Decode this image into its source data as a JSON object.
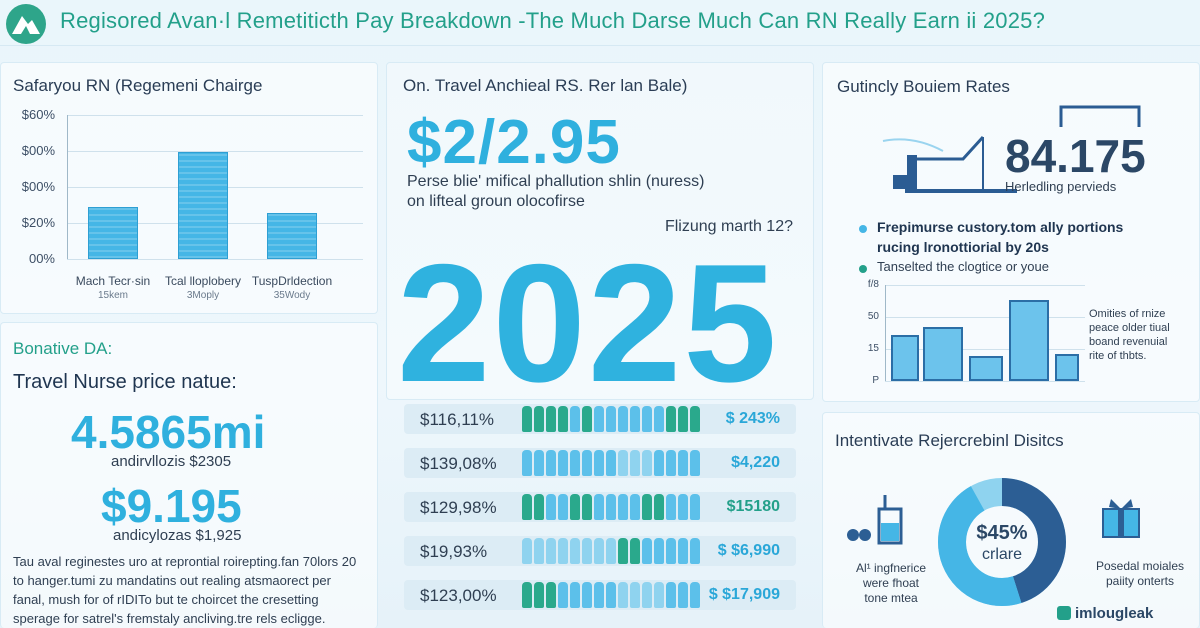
{
  "header": {
    "title": "Regisored Avan·l Remetiticth Pay Breakdown -The Much Darse Much Can RN Really Earn ii 2025?"
  },
  "left_top": {
    "title": "Safaryou RN (Regemeni Chairge",
    "chart_data": {
      "type": "bar",
      "y_ticks": [
        "$60%",
        "$00%",
        "$00%",
        "$20%",
        "00%"
      ],
      "categories": [
        "Mach Tecr·sin",
        "Tcal lloplobery",
        "TuspDrldection"
      ],
      "subcategories": [
        "15kem",
        "3Moply",
        "35Wody"
      ],
      "values": [
        0.36,
        0.74,
        0.32
      ]
    }
  },
  "left_bottom": {
    "kicker": "Bonative DA:",
    "title": "Travel Nurse price natue:",
    "stat1": "4.5865mi",
    "stat1_sub": "andirvllozis $2305",
    "stat2": "$9.195",
    "stat2_sub": "andicylozas $1,925",
    "paragraph": [
      "Tau aval reginestes uro at reprontial roirepting.fan 70lors 20",
      "to hanger.tumi zu mandatins out realing atsmaorect per",
      "fanal, mush for of rIDITo but te choircet the cresetting",
      "sperage for satrel's fremstaly ancliving.tre rels ecligge."
    ]
  },
  "center": {
    "title": "On. Travel Anchieal RS. Rer lan Bale)",
    "amount": "$2/2.95",
    "desc1": "Perse blie' mifical phallution shlin (nuress)",
    "desc2": "on lifteal groun olocofirse",
    "note": "Flizung marth 12?",
    "year": "2025",
    "rows": [
      {
        "left": "$116,11%",
        "right": "$ 243%"
      },
      {
        "left": "$139,08%",
        "right": "$4,220"
      },
      {
        "left": "$129,98%",
        "right": "$15180"
      },
      {
        "left": "$19,93%",
        "right": "$ $6,990"
      },
      {
        "left": "$123,00%",
        "right": "$ $17,909"
      }
    ]
  },
  "right_top": {
    "title": "Gutincly Bouiem Rates",
    "stat": "84.175",
    "stat_sub": "Herledling pervieds",
    "bullet1a": "Frepimurse custory.tom ally portions",
    "bullet1b": "rucing lronottiorial by 20s",
    "bullet2": "Tanselted the clogtice or youe",
    "y_ticks": [
      "f/8",
      "50",
      "15",
      "P"
    ],
    "bar_values": [
      0.48,
      0.56,
      0.26,
      0.84,
      0.28
    ],
    "side1": "Omities of rnize",
    "side2": "peace older tiual",
    "side3": "boand revenuial",
    "side4": "rite of thbts."
  },
  "right_bottom": {
    "title": "Intentivate Rejercrebinl Disitcs",
    "left1": "Al¹ ingfnerice",
    "left2": "were fhoat",
    "left3": "tone mtea",
    "donut_pct": "$45%",
    "donut_sub": "crlare",
    "donut_value": 0.45,
    "right1": "Posedal moiales",
    "right2": "paiity onterts",
    "brand": "imlougleak"
  },
  "colors": {
    "accent": "#2fb2df",
    "brand_green": "#23a08a",
    "person_green": "#2aa98c",
    "person_blue": "#5cc0ea",
    "person_light": "#8fd3ef",
    "donut_dark": "#2c5e94"
  }
}
